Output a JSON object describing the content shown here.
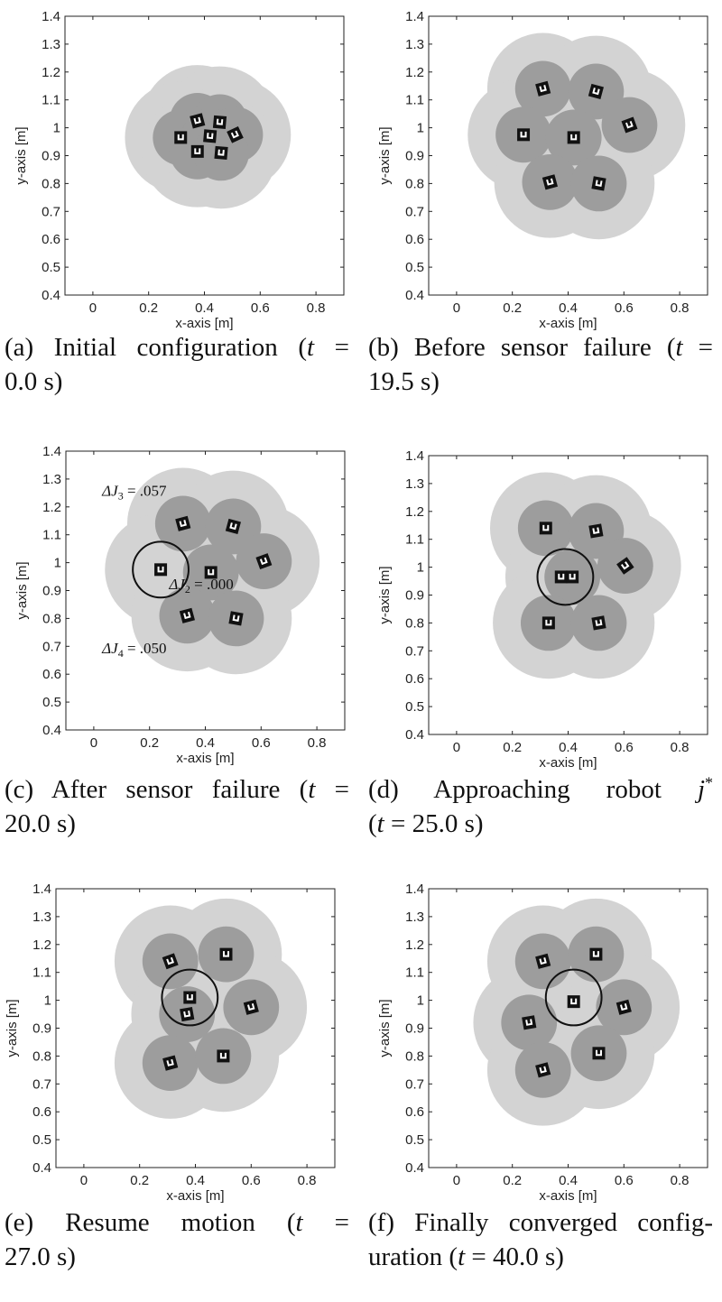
{
  "chart_data": [
    {
      "type": "scatter",
      "id": "a",
      "xlabel": "x-axis [m]",
      "ylabel": "y-axis [m]",
      "xlim": [
        -0.1,
        0.9
      ],
      "ylim": [
        0.4,
        1.4
      ],
      "xticks": [
        "0",
        "0.2",
        "0.4",
        "0.6",
        "0.8"
      ],
      "xtick_values": [
        0,
        0.2,
        0.4,
        0.6,
        0.8
      ],
      "yticks": [
        "0.4",
        "0.5",
        "0.6",
        "0.7",
        "0.8",
        "0.9",
        "1",
        "1.1",
        "1.2",
        "1.3",
        "1.4"
      ],
      "ytick_values": [
        0.4,
        0.5,
        0.6,
        0.7,
        0.8,
        0.9,
        1.0,
        1.1,
        1.2,
        1.3,
        1.4
      ],
      "sensing_radius": 0.1,
      "outer_radius": 0.2,
      "robots": [
        [
          0.375,
          1.025,
          -15
        ],
        [
          0.455,
          1.02,
          5
        ],
        [
          0.315,
          0.965,
          0
        ],
        [
          0.42,
          0.97,
          5
        ],
        [
          0.51,
          0.975,
          -25
        ],
        [
          0.375,
          0.915,
          0
        ],
        [
          0.46,
          0.91,
          5
        ]
      ],
      "failed_robot_index": null,
      "failure_circle": null,
      "annotations": [],
      "caption": [
        [
          {
            "t": "(a) Initial configuration ("
          },
          {
            "t": "t",
            "i": true
          },
          {
            "t": " ="
          }
        ],
        [
          {
            "t": "0.0 s)"
          }
        ]
      ]
    },
    {
      "type": "scatter",
      "id": "b",
      "xlabel": "x-axis [m]",
      "ylabel": "y-axis [m]",
      "xlim": [
        -0.1,
        0.9
      ],
      "ylim": [
        0.4,
        1.4
      ],
      "xticks": [
        "0",
        "0.2",
        "0.4",
        "0.6",
        "0.8"
      ],
      "xtick_values": [
        0,
        0.2,
        0.4,
        0.6,
        0.8
      ],
      "yticks": [
        "0.4",
        "0.5",
        "0.6",
        "0.7",
        "0.8",
        "0.9",
        "1",
        "1.1",
        "1.2",
        "1.3",
        "1.4"
      ],
      "ytick_values": [
        0.4,
        0.5,
        0.6,
        0.7,
        0.8,
        0.9,
        1.0,
        1.1,
        1.2,
        1.3,
        1.4
      ],
      "sensing_radius": 0.1,
      "outer_radius": 0.2,
      "robots": [
        [
          0.31,
          1.14,
          -15
        ],
        [
          0.5,
          1.13,
          15
        ],
        [
          0.24,
          0.975,
          0
        ],
        [
          0.42,
          0.965,
          0
        ],
        [
          0.62,
          1.01,
          -20
        ],
        [
          0.335,
          0.805,
          -15
        ],
        [
          0.51,
          0.8,
          10
        ]
      ],
      "failed_robot_index": null,
      "failure_circle": null,
      "annotations": [],
      "caption": [
        [
          {
            "t": "(b) Before sensor failure ("
          },
          {
            "t": "t",
            "i": true
          },
          {
            "t": " ="
          }
        ],
        [
          {
            "t": "19.5 s)"
          }
        ]
      ]
    },
    {
      "type": "scatter",
      "id": "c",
      "xlabel": "x-axis [m]",
      "ylabel": "y-axis [m]",
      "xlim": [
        -0.1,
        0.9
      ],
      "ylim": [
        0.4,
        1.4
      ],
      "xticks": [
        "0",
        "0.2",
        "0.4",
        "0.6",
        "0.8"
      ],
      "xtick_values": [
        0,
        0.2,
        0.4,
        0.6,
        0.8
      ],
      "yticks": [
        "0.4",
        "0.5",
        "0.6",
        "0.7",
        "0.8",
        "0.9",
        "1",
        "1.1",
        "1.2",
        "1.3",
        "1.4"
      ],
      "ytick_values": [
        0.4,
        0.5,
        0.6,
        0.7,
        0.8,
        0.9,
        1.0,
        1.1,
        1.2,
        1.3,
        1.4
      ],
      "sensing_radius": 0.1,
      "outer_radius": 0.2,
      "robots": [
        [
          0.32,
          1.14,
          -15
        ],
        [
          0.5,
          1.13,
          15
        ],
        [
          0.24,
          0.975,
          0
        ],
        [
          0.42,
          0.965,
          0
        ],
        [
          0.61,
          1.005,
          -20
        ],
        [
          0.335,
          0.81,
          -15
        ],
        [
          0.51,
          0.8,
          10
        ]
      ],
      "failed_robot_index": 2,
      "failure_circle": [
        0.24,
        0.975
      ],
      "annotations": [
        {
          "sym": "ΔJ",
          "sub": "3",
          "val": " = .057",
          "x": 0.03,
          "y": 1.24
        },
        {
          "sym": "ΔJ",
          "sub": "2",
          "val": " = .000",
          "x": 0.27,
          "y": 0.905
        },
        {
          "sym": "ΔJ",
          "sub": "4",
          "val": " = .050",
          "x": 0.03,
          "y": 0.675
        }
      ],
      "caption": [
        [
          {
            "t": "(c) After sensor failure ("
          },
          {
            "t": "t",
            "i": true
          },
          {
            "t": " ="
          }
        ],
        [
          {
            "t": "20.0 s)"
          }
        ]
      ]
    },
    {
      "type": "scatter",
      "id": "d",
      "xlabel": "x-axis [m]",
      "ylabel": "y-axis [m]",
      "xlim": [
        -0.1,
        0.9
      ],
      "ylim": [
        0.4,
        1.4
      ],
      "xticks": [
        "0",
        "0.2",
        "0.4",
        "0.6",
        "0.8"
      ],
      "xtick_values": [
        0,
        0.2,
        0.4,
        0.6,
        0.8
      ],
      "yticks": [
        "0.4",
        "0.5",
        "0.6",
        "0.7",
        "0.8",
        "0.9",
        "1",
        "1.1",
        "1.2",
        "1.3",
        "1.4"
      ],
      "ytick_values": [
        0.4,
        0.5,
        0.6,
        0.7,
        0.8,
        0.9,
        1.0,
        1.1,
        1.2,
        1.3,
        1.4
      ],
      "sensing_radius": 0.1,
      "outer_radius": 0.2,
      "robots": [
        [
          0.32,
          1.14,
          0
        ],
        [
          0.5,
          1.13,
          -10
        ],
        [
          0.375,
          0.965,
          0
        ],
        [
          0.415,
          0.965,
          0
        ],
        [
          0.605,
          1.005,
          -35
        ],
        [
          0.33,
          0.8,
          0
        ],
        [
          0.51,
          0.8,
          -10
        ]
      ],
      "failed_robot_index": 2,
      "failure_circle": [
        0.39,
        0.965
      ],
      "annotations": [],
      "caption": [
        [
          {
            "t": "(d) Approaching robot "
          },
          {
            "t": "j",
            "i": true
          },
          {
            "t": "*"
          }
        ],
        [
          {
            "t": "("
          },
          {
            "t": "t",
            "i": true
          },
          {
            "t": " = 25.0 s)"
          }
        ]
      ]
    },
    {
      "type": "scatter",
      "id": "e",
      "xlabel": "x-axis [m]",
      "ylabel": "y-axis [m]",
      "xlim": [
        -0.1,
        0.9
      ],
      "ylim": [
        0.4,
        1.4
      ],
      "xticks": [
        "0",
        "0.2",
        "0.4",
        "0.6",
        "0.8"
      ],
      "xtick_values": [
        0,
        0.2,
        0.4,
        0.6,
        0.8
      ],
      "yticks": [
        "0.4",
        "0.5",
        "0.6",
        "0.7",
        "0.8",
        "0.9",
        "1",
        "1.1",
        "1.2",
        "1.3",
        "1.4"
      ],
      "ytick_values": [
        0.4,
        0.5,
        0.6,
        0.7,
        0.8,
        0.9,
        1.0,
        1.1,
        1.2,
        1.3,
        1.4
      ],
      "sensing_radius": 0.1,
      "outer_radius": 0.2,
      "robots": [
        [
          0.31,
          1.14,
          -20
        ],
        [
          0.51,
          1.165,
          0
        ],
        [
          0.38,
          1.01,
          0
        ],
        [
          0.37,
          0.95,
          -10
        ],
        [
          0.6,
          0.975,
          -15
        ],
        [
          0.31,
          0.775,
          -15
        ],
        [
          0.5,
          0.8,
          0
        ]
      ],
      "failed_robot_index": 2,
      "failure_circle": [
        0.38,
        1.01
      ],
      "annotations": [],
      "caption": [
        [
          {
            "t": "(e) Resume motion ("
          },
          {
            "t": "t",
            "i": true
          },
          {
            "t": " ="
          }
        ],
        [
          {
            "t": "27.0 s)"
          }
        ]
      ]
    },
    {
      "type": "scatter",
      "id": "f",
      "xlabel": "x-axis [m]",
      "ylabel": "y-axis [m]",
      "xlim": [
        -0.1,
        0.9
      ],
      "ylim": [
        0.4,
        1.4
      ],
      "xticks": [
        "0",
        "0.2",
        "0.4",
        "0.6",
        "0.8"
      ],
      "xtick_values": [
        0,
        0.2,
        0.4,
        0.6,
        0.8
      ],
      "yticks": [
        "0.4",
        "0.5",
        "0.6",
        "0.7",
        "0.8",
        "0.9",
        "1",
        "1.1",
        "1.2",
        "1.3",
        "1.4"
      ],
      "ytick_values": [
        0.4,
        0.5,
        0.6,
        0.7,
        0.8,
        0.9,
        1.0,
        1.1,
        1.2,
        1.3,
        1.4
      ],
      "sensing_radius": 0.1,
      "outer_radius": 0.2,
      "robots": [
        [
          0.31,
          1.14,
          -15
        ],
        [
          0.5,
          1.165,
          0
        ],
        [
          0.42,
          0.995,
          0
        ],
        [
          0.26,
          0.92,
          -10
        ],
        [
          0.6,
          0.975,
          -15
        ],
        [
          0.31,
          0.75,
          -15
        ],
        [
          0.51,
          0.81,
          0
        ]
      ],
      "failed_robot_index": 2,
      "failure_circle": [
        0.42,
        1.01
      ],
      "annotations": [],
      "caption": [
        [
          {
            "t": "(f) Finally converged config-"
          }
        ],
        [
          {
            "t": "uration ("
          },
          {
            "t": "t",
            "i": true
          },
          {
            "t": " = 40.0 s)"
          }
        ]
      ]
    }
  ],
  "colors": {
    "outer": "#d3d3d3",
    "inner": "#9d9d9d",
    "robot": "#111111",
    "axis": "#222222"
  }
}
